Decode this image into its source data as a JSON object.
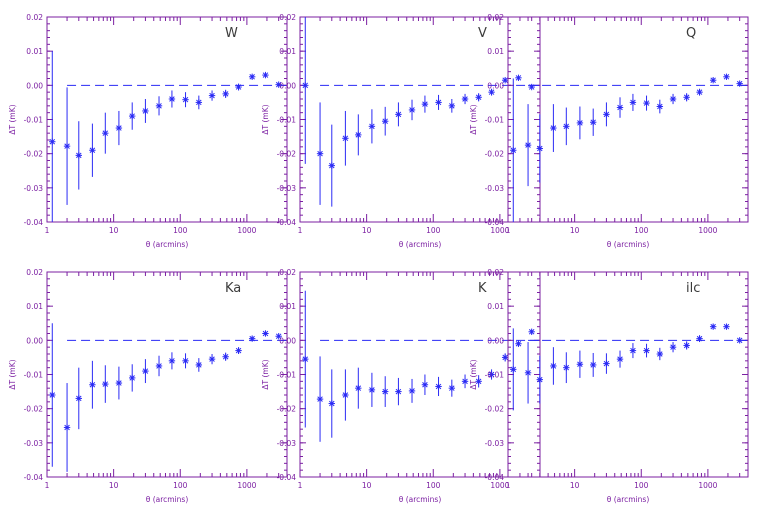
{
  "chart_data": [
    {
      "type": "scatter",
      "label": "W",
      "xlabel": "θ (arcmins)",
      "ylabel": "ΔT (mK)",
      "xscale": "log",
      "xlim": [
        1,
        4000
      ],
      "ylim": [
        -0.04,
        0.02
      ],
      "xticks": [
        "1",
        "10",
        "100",
        "1000"
      ],
      "yticks": [
        "0.02",
        "0.01",
        "0.00",
        "-0.01",
        "-0.02",
        "-0.03",
        "-0.04"
      ],
      "points": [
        {
          "x": 1.2,
          "y": -0.0165,
          "err": 0.0265
        },
        {
          "x": 2.0,
          "y": -0.0178,
          "err": 0.0172
        },
        {
          "x": 3.0,
          "y": -0.0205,
          "err": 0.01
        },
        {
          "x": 4.8,
          "y": -0.019,
          "err": 0.0078
        },
        {
          "x": 7.5,
          "y": -0.014,
          "err": 0.006
        },
        {
          "x": 12,
          "y": -0.0125,
          "err": 0.005
        },
        {
          "x": 19,
          "y": -0.009,
          "err": 0.004
        },
        {
          "x": 30,
          "y": -0.0075,
          "err": 0.0035
        },
        {
          "x": 48,
          "y": -0.006,
          "err": 0.0028
        },
        {
          "x": 75,
          "y": -0.004,
          "err": 0.0025
        },
        {
          "x": 120,
          "y": -0.0042,
          "err": 0.0022
        },
        {
          "x": 190,
          "y": -0.005,
          "err": 0.002
        },
        {
          "x": 300,
          "y": -0.003,
          "err": 0.0015
        },
        {
          "x": 480,
          "y": -0.0025,
          "err": 0.0012
        },
        {
          "x": 750,
          "y": -0.0005,
          "err": 0.001
        },
        {
          "x": 1200,
          "y": 0.0025,
          "err": 0.0006
        },
        {
          "x": 1900,
          "y": 0.003,
          "err": 0.0004
        },
        {
          "x": 3000,
          "y": 0.0002,
          "err": 0.0003
        }
      ]
    },
    {
      "type": "scatter",
      "label": "V",
      "xlabel": "θ (arcmins)",
      "ylabel": "ΔT (mK)",
      "xscale": "log",
      "xlim": [
        1,
        4000
      ],
      "ylim": [
        -0.04,
        0.02
      ],
      "xticks": [
        "1",
        "10",
        "100",
        "1000"
      ],
      "yticks": [
        "0.02",
        "0.01",
        "0.00",
        "-0.01",
        "-0.02",
        "-0.03",
        "-0.04"
      ],
      "points": [
        {
          "x": 1.2,
          "y": 0.0,
          "err": 0.023
        },
        {
          "x": 2.0,
          "y": -0.02,
          "err": 0.015
        },
        {
          "x": 3.0,
          "y": -0.0235,
          "err": 0.012
        },
        {
          "x": 4.8,
          "y": -0.0155,
          "err": 0.008
        },
        {
          "x": 7.5,
          "y": -0.0145,
          "err": 0.006
        },
        {
          "x": 12,
          "y": -0.012,
          "err": 0.005
        },
        {
          "x": 19,
          "y": -0.0105,
          "err": 0.0042
        },
        {
          "x": 30,
          "y": -0.0085,
          "err": 0.0035
        },
        {
          "x": 48,
          "y": -0.0072,
          "err": 0.003
        },
        {
          "x": 75,
          "y": -0.0055,
          "err": 0.0025
        },
        {
          "x": 120,
          "y": -0.005,
          "err": 0.0022
        },
        {
          "x": 190,
          "y": -0.006,
          "err": 0.002
        },
        {
          "x": 300,
          "y": -0.004,
          "err": 0.0015
        },
        {
          "x": 480,
          "y": -0.0035,
          "err": 0.0012
        },
        {
          "x": 750,
          "y": -0.002,
          "err": 0.001
        },
        {
          "x": 1200,
          "y": 0.0015,
          "err": 0.0006
        },
        {
          "x": 1900,
          "y": 0.0022,
          "err": 0.0004
        },
        {
          "x": 3000,
          "y": -0.0005,
          "err": 0.0003
        }
      ]
    },
    {
      "type": "scatter",
      "label": "Q",
      "xlabel": "θ (arcmins)",
      "ylabel": "ΔT (mK)",
      "xscale": "log",
      "xlim": [
        1,
        4000
      ],
      "ylim": [
        -0.04,
        0.02
      ],
      "xticks": [
        "1",
        "10",
        "100",
        "1000"
      ],
      "yticks": [
        "0.02",
        "0.01",
        "0.00",
        "-0.01",
        "-0.02",
        "-0.03",
        "-0.04"
      ],
      "points": [
        {
          "x": 1.2,
          "y": -0.019,
          "err": 0.021
        },
        {
          "x": 2.0,
          "y": -0.0175,
          "err": 0.012
        },
        {
          "x": 3.0,
          "y": -0.0185,
          "err": 0.01
        },
        {
          "x": 4.8,
          "y": -0.0125,
          "err": 0.007
        },
        {
          "x": 7.5,
          "y": -0.012,
          "err": 0.0055
        },
        {
          "x": 12,
          "y": -0.011,
          "err": 0.0048
        },
        {
          "x": 19,
          "y": -0.0108,
          "err": 0.004
        },
        {
          "x": 30,
          "y": -0.0085,
          "err": 0.0035
        },
        {
          "x": 48,
          "y": -0.0065,
          "err": 0.003
        },
        {
          "x": 75,
          "y": -0.005,
          "err": 0.0025
        },
        {
          "x": 120,
          "y": -0.0052,
          "err": 0.0022
        },
        {
          "x": 190,
          "y": -0.0062,
          "err": 0.002
        },
        {
          "x": 300,
          "y": -0.004,
          "err": 0.0015
        },
        {
          "x": 480,
          "y": -0.0035,
          "err": 0.0012
        },
        {
          "x": 750,
          "y": -0.002,
          "err": 0.001
        },
        {
          "x": 1200,
          "y": 0.0015,
          "err": 0.0006
        },
        {
          "x": 1900,
          "y": 0.0025,
          "err": 0.0004
        },
        {
          "x": 3000,
          "y": 0.0005,
          "err": 0.0003
        }
      ]
    },
    {
      "type": "scatter",
      "label": "Ka",
      "xlabel": "θ (arcmins)",
      "ylabel": "ΔT (mK)",
      "xscale": "log",
      "xlim": [
        1,
        4000
      ],
      "ylim": [
        -0.04,
        0.02
      ],
      "xticks": [
        "1",
        "10",
        "100",
        "1000"
      ],
      "yticks": [
        "0.02",
        "0.01",
        "0.00",
        "-0.01",
        "-0.02",
        "-0.03",
        "-0.04"
      ],
      "points": [
        {
          "x": 1.2,
          "y": -0.016,
          "err": 0.021
        },
        {
          "x": 2.0,
          "y": -0.0255,
          "err": 0.013
        },
        {
          "x": 3.0,
          "y": -0.017,
          "err": 0.009
        },
        {
          "x": 4.8,
          "y": -0.013,
          "err": 0.007
        },
        {
          "x": 7.5,
          "y": -0.0128,
          "err": 0.0055
        },
        {
          "x": 12,
          "y": -0.0125,
          "err": 0.0048
        },
        {
          "x": 19,
          "y": -0.011,
          "err": 0.004
        },
        {
          "x": 30,
          "y": -0.009,
          "err": 0.0035
        },
        {
          "x": 48,
          "y": -0.0075,
          "err": 0.003
        },
        {
          "x": 75,
          "y": -0.006,
          "err": 0.0025
        },
        {
          "x": 120,
          "y": -0.006,
          "err": 0.0022
        },
        {
          "x": 190,
          "y": -0.0072,
          "err": 0.002
        },
        {
          "x": 300,
          "y": -0.0055,
          "err": 0.0015
        },
        {
          "x": 480,
          "y": -0.0048,
          "err": 0.0012
        },
        {
          "x": 750,
          "y": -0.003,
          "err": 0.001
        },
        {
          "x": 1200,
          "y": 0.0005,
          "err": 0.0006
        },
        {
          "x": 1900,
          "y": 0.002,
          "err": 0.0004
        },
        {
          "x": 3000,
          "y": 0.0012,
          "err": 0.0003
        }
      ]
    },
    {
      "type": "scatter",
      "label": "K",
      "xlabel": "θ (arcmins)",
      "ylabel": "ΔT (mK)",
      "xscale": "log",
      "xlim": [
        1,
        4000
      ],
      "ylim": [
        -0.04,
        0.02
      ],
      "xticks": [
        "1",
        "10",
        "100",
        "1000"
      ],
      "yticks": [
        "0.02",
        "0.01",
        "0.00",
        "-0.01",
        "-0.02",
        "-0.03",
        "-0.04"
      ],
      "points": [
        {
          "x": 1.2,
          "y": -0.0055,
          "err": 0.02
        },
        {
          "x": 2.0,
          "y": -0.0172,
          "err": 0.0125
        },
        {
          "x": 3.0,
          "y": -0.0185,
          "err": 0.01
        },
        {
          "x": 4.8,
          "y": -0.016,
          "err": 0.0075
        },
        {
          "x": 7.5,
          "y": -0.014,
          "err": 0.006
        },
        {
          "x": 12,
          "y": -0.0145,
          "err": 0.005
        },
        {
          "x": 19,
          "y": -0.015,
          "err": 0.0045
        },
        {
          "x": 30,
          "y": -0.015,
          "err": 0.004
        },
        {
          "x": 48,
          "y": -0.0148,
          "err": 0.0035
        },
        {
          "x": 75,
          "y": -0.013,
          "err": 0.003
        },
        {
          "x": 120,
          "y": -0.0135,
          "err": 0.0028
        },
        {
          "x": 190,
          "y": -0.014,
          "err": 0.0025
        },
        {
          "x": 300,
          "y": -0.012,
          "err": 0.002
        },
        {
          "x": 480,
          "y": -0.012,
          "err": 0.0018
        },
        {
          "x": 750,
          "y": -0.01,
          "err": 0.0015
        },
        {
          "x": 1200,
          "y": -0.005,
          "err": 0.0012
        },
        {
          "x": 1900,
          "y": -0.001,
          "err": 0.0008
        },
        {
          "x": 3000,
          "y": 0.0025,
          "err": 0.0006
        }
      ]
    },
    {
      "type": "scatter",
      "label": "ilc",
      "xlabel": "θ (arcmins)",
      "ylabel": "ΔT (mK)",
      "xscale": "log",
      "xlim": [
        1,
        4000
      ],
      "ylim": [
        -0.04,
        0.02
      ],
      "xticks": [
        "1",
        "10",
        "100",
        "1000"
      ],
      "yticks": [
        "0.02",
        "0.01",
        "0.00",
        "-0.01",
        "-0.02",
        "-0.03",
        "-0.04"
      ],
      "points": [
        {
          "x": 1.2,
          "y": -0.0085,
          "err": 0.012
        },
        {
          "x": 2.0,
          "y": -0.0095,
          "err": 0.009
        },
        {
          "x": 3.0,
          "y": -0.0115,
          "err": 0.007
        },
        {
          "x": 4.8,
          "y": -0.0075,
          "err": 0.0055
        },
        {
          "x": 7.5,
          "y": -0.008,
          "err": 0.0045
        },
        {
          "x": 12,
          "y": -0.007,
          "err": 0.004
        },
        {
          "x": 19,
          "y": -0.0072,
          "err": 0.0035
        },
        {
          "x": 30,
          "y": -0.0068,
          "err": 0.003
        },
        {
          "x": 48,
          "y": -0.0055,
          "err": 0.0025
        },
        {
          "x": 75,
          "y": -0.003,
          "err": 0.0022
        },
        {
          "x": 120,
          "y": -0.003,
          "err": 0.002
        },
        {
          "x": 190,
          "y": -0.004,
          "err": 0.0018
        },
        {
          "x": 300,
          "y": -0.002,
          "err": 0.0015
        },
        {
          "x": 480,
          "y": -0.0015,
          "err": 0.0012
        },
        {
          "x": 750,
          "y": 0.0005,
          "err": 0.001
        },
        {
          "x": 1200,
          "y": 0.004,
          "err": 0.0006
        },
        {
          "x": 1900,
          "y": 0.004,
          "err": 0.0004
        },
        {
          "x": 3000,
          "y": 0.0,
          "err": 0.0003
        }
      ]
    }
  ],
  "colors": {
    "axis": "#7b1fa2",
    "data": "#2a2af5",
    "label": "#3b3b3b"
  }
}
